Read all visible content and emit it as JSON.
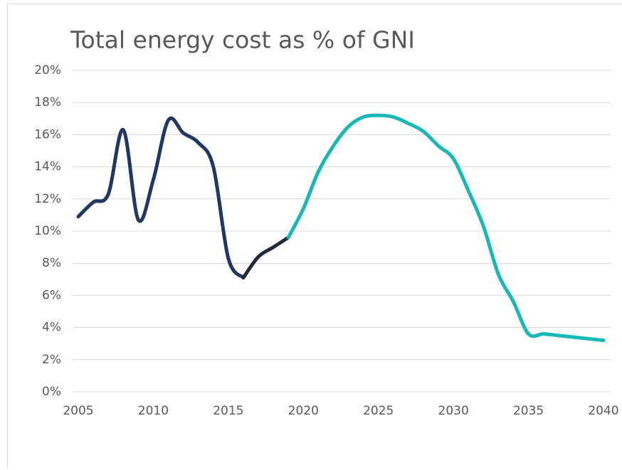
{
  "chart_data": {
    "type": "line",
    "title": "Total energy cost as % of GNI",
    "x": [
      2005,
      2006,
      2007,
      2008,
      2009,
      2010,
      2011,
      2012,
      2013,
      2014,
      2015,
      2016,
      2017,
      2018,
      2019,
      2020,
      2021,
      2022,
      2023,
      2024,
      2025,
      2026,
      2027,
      2028,
      2029,
      2030,
      2031,
      2032,
      2033,
      2034,
      2035,
      2036,
      2037,
      2038,
      2039,
      2040
    ],
    "series": [
      {
        "color": "#1f3864",
        "values": [
          10.9,
          11.8,
          12.3,
          16.3,
          10.7,
          13.2,
          16.9,
          16.1,
          15.5,
          14.0,
          8.3,
          7.1,
          null,
          null,
          null,
          null,
          null,
          null,
          null,
          null,
          null,
          null,
          null,
          null,
          null,
          null,
          null,
          null,
          null,
          null,
          null,
          null,
          null,
          null,
          null,
          null
        ]
      },
      {
        "color": "#222a35",
        "values": [
          null,
          null,
          null,
          null,
          null,
          null,
          null,
          null,
          null,
          null,
          null,
          7.1,
          8.4,
          9.0,
          9.6,
          null,
          null,
          null,
          null,
          null,
          null,
          null,
          null,
          null,
          null,
          null,
          null,
          null,
          null,
          null,
          null,
          null,
          null,
          null,
          null,
          null
        ]
      },
      {
        "color": "#17b9b6",
        "values": [
          null,
          null,
          null,
          null,
          null,
          null,
          null,
          null,
          null,
          null,
          null,
          null,
          null,
          null,
          9.6,
          11.4,
          13.7,
          15.3,
          16.5,
          17.1,
          17.2,
          17.1,
          16.7,
          16.2,
          15.3,
          14.5,
          12.5,
          10.3,
          7.3,
          5.6,
          3.6,
          3.6,
          3.5,
          3.4,
          3.3,
          3.2
        ]
      }
    ],
    "xlim": [
      2005,
      2040
    ],
    "xticks": [
      2005,
      2010,
      2015,
      2020,
      2025,
      2030,
      2035,
      2040
    ],
    "ylim": [
      0,
      20
    ],
    "yticks": [
      {
        "value": 0,
        "label": "0%"
      },
      {
        "value": 2,
        "label": "2%"
      },
      {
        "value": 4,
        "label": "4%"
      },
      {
        "value": 6,
        "label": "6%"
      },
      {
        "value": 8,
        "label": "8%"
      },
      {
        "value": 10,
        "label": "10%"
      },
      {
        "value": 12,
        "label": "12%"
      },
      {
        "value": 14,
        "label": "14%"
      },
      {
        "value": 16,
        "label": "16%"
      },
      {
        "value": 18,
        "label": "18%"
      },
      {
        "value": 20,
        "label": "20%"
      }
    ],
    "grid": true
  }
}
